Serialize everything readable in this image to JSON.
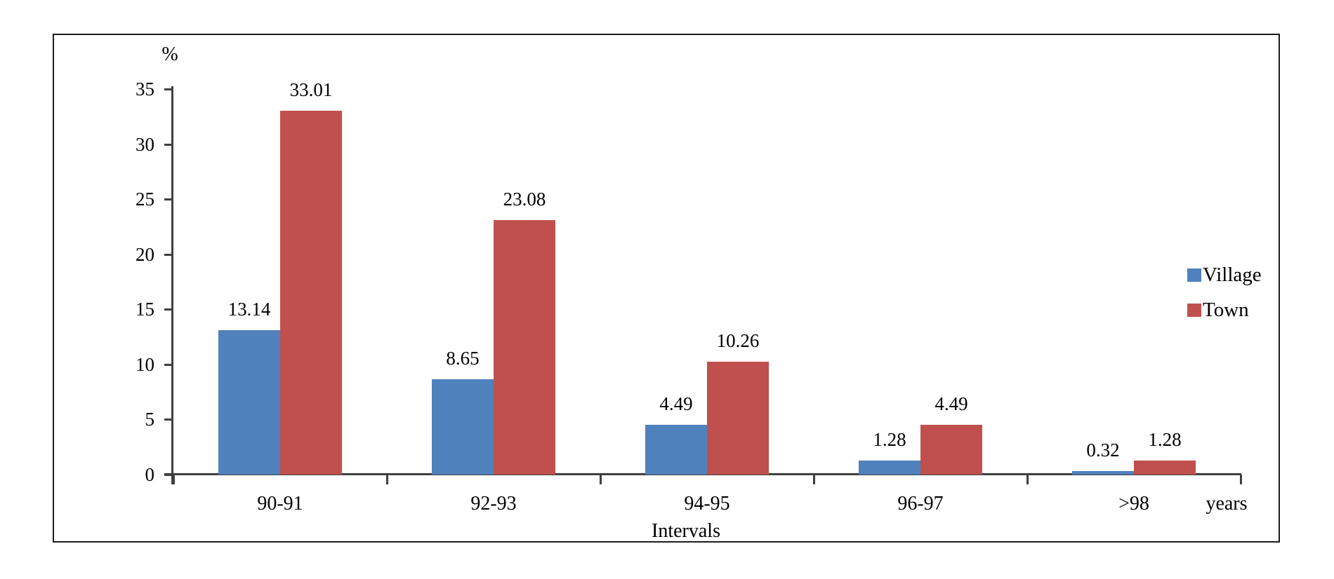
{
  "chart_data": {
    "type": "bar",
    "categories": [
      "90-91",
      "92-93",
      "94-95",
      "96-97",
      ">98"
    ],
    "series": [
      {
        "name": "Village",
        "color": "#4F81BD",
        "values": [
          13.14,
          8.65,
          4.49,
          1.28,
          0.32
        ]
      },
      {
        "name": "Town",
        "color": "#C0504D",
        "values": [
          33.01,
          23.08,
          10.26,
          4.49,
          1.28
        ]
      }
    ],
    "data_labels": [
      "13.14",
      "8.65",
      "4.49",
      "1.28",
      "0.32",
      "33.01",
      "23.08",
      "10.26",
      "4.49",
      "1.28"
    ],
    "title": "",
    "ylabel": "%",
    "xlabel": "Intervals",
    "x_unit_label": "years",
    "y_ticks": [
      0,
      5,
      10,
      15,
      20,
      25,
      30,
      35
    ],
    "ylim": [
      0,
      35
    ],
    "grid": false,
    "legend_position": "right",
    "axis_color": "#3f3f3f",
    "frame_color": "#1c1c1c"
  }
}
